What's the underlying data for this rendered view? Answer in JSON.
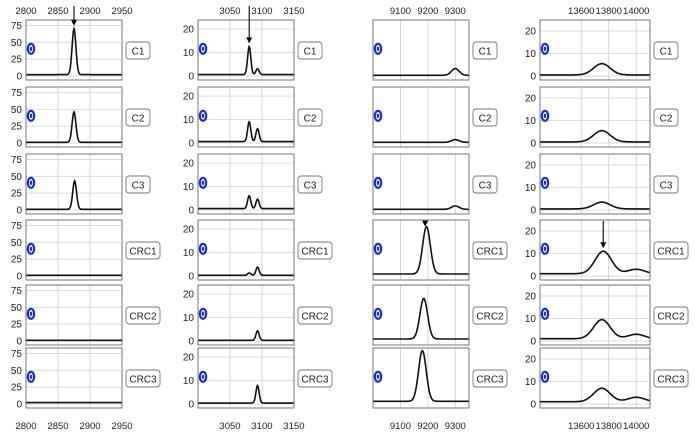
{
  "colors": {
    "line": "#111111",
    "grid": "#cfcfcf",
    "frame": "#666666",
    "label_box": "#777777",
    "marker": "#1c2bd6",
    "text": "#222222"
  },
  "marker_icon": "blue-ring-icon",
  "arrow_icon": "down-arrow-icon",
  "chart_data": [
    {
      "type": "line",
      "column": 1,
      "rows": [
        "C1",
        "C2",
        "C3",
        "CRC1",
        "CRC2",
        "CRC3"
      ],
      "xlim": [
        2800,
        2950
      ],
      "ylim": [
        0,
        80
      ],
      "top_ticks": [
        2800,
        2850,
        2900,
        2950
      ],
      "bottom_ticks": [
        2800,
        2850,
        2900,
        2950
      ],
      "y_ticks": [
        0,
        25,
        50,
        75
      ],
      "gauss_sigma": 3,
      "series": [
        {
          "name": "C1",
          "baseline": 2,
          "peaks": [
            [
              2875,
              68
            ]
          ],
          "arrow_x": 2875
        },
        {
          "name": "C2",
          "baseline": 1,
          "peaks": [
            [
              2875,
              45
            ]
          ]
        },
        {
          "name": "C3",
          "baseline": 1,
          "peaks": [
            [
              2876,
              42
            ]
          ]
        },
        {
          "name": "CRC1",
          "baseline": 1,
          "peaks": []
        },
        {
          "name": "CRC2",
          "baseline": 1,
          "peaks": []
        },
        {
          "name": "CRC3",
          "baseline": 2,
          "peaks": []
        }
      ]
    },
    {
      "type": "line",
      "column": 2,
      "rows": [
        "C1",
        "C2",
        "C3",
        "CRC1",
        "CRC2",
        "CRC3"
      ],
      "xlim": [
        3000,
        3150
      ],
      "ylim": [
        0,
        23
      ],
      "top_ticks": [
        3050,
        3100,
        3150
      ],
      "bottom_ticks": [
        3050,
        3100,
        3150
      ],
      "y_ticks": [
        0,
        10,
        20
      ],
      "gauss_sigma": 2.5,
      "series": [
        {
          "name": "C1",
          "baseline": 0.6,
          "peaks": [
            [
              3080,
              12
            ],
            [
              3093,
              2.5
            ]
          ],
          "arrow_x": 3080
        },
        {
          "name": "C2",
          "baseline": 0.6,
          "peaks": [
            [
              3080,
              8.5
            ],
            [
              3093,
              5.5
            ]
          ]
        },
        {
          "name": "C3",
          "baseline": 0.6,
          "peaks": [
            [
              3080,
              5.5
            ],
            [
              3093,
              4
            ]
          ]
        },
        {
          "name": "CRC1",
          "baseline": 0.3,
          "peaks": [
            [
              3080,
              1
            ],
            [
              3093,
              3.5
            ]
          ]
        },
        {
          "name": "CRC2",
          "baseline": 0.3,
          "peaks": [
            [
              3093,
              4
            ]
          ]
        },
        {
          "name": "CRC3",
          "baseline": 0.4,
          "peaks": [
            [
              3093,
              7.5
            ]
          ]
        }
      ]
    },
    {
      "type": "line",
      "column": 3,
      "rows": [
        "C1",
        "C2",
        "C3",
        "CRC1",
        "CRC2",
        "CRC3"
      ],
      "xlim": [
        9000,
        9350
      ],
      "ylim": [
        0,
        80
      ],
      "top_ticks": [
        9100,
        9200,
        9300
      ],
      "bottom_ticks": [
        9100,
        9200,
        9300
      ],
      "y_ticks": [],
      "gauss_sigma": 14,
      "series": [
        {
          "name": "C1",
          "baseline": 1,
          "peaks": [
            [
              9300,
              10
            ]
          ]
        },
        {
          "name": "C2",
          "baseline": 1,
          "peaks": [
            [
              9300,
              4
            ]
          ]
        },
        {
          "name": "C3",
          "baseline": 1,
          "peaks": [
            [
              9300,
              5
            ]
          ]
        },
        {
          "name": "CRC1",
          "baseline": 3,
          "peaks": [
            [
              9195,
              70
            ]
          ],
          "arrow_x": 9190
        },
        {
          "name": "CRC2",
          "baseline": 3,
          "peaks": [
            [
              9185,
              60
            ]
          ]
        },
        {
          "name": "CRC3",
          "baseline": 4,
          "peaks": [
            [
              9180,
              75
            ]
          ]
        }
      ]
    },
    {
      "type": "line",
      "column": 4,
      "rows": [
        "C1",
        "C2",
        "C3",
        "CRC1",
        "CRC2",
        "CRC3"
      ],
      "xlim": [
        13300,
        14100
      ],
      "ylim": [
        0,
        24
      ],
      "top_ticks": [
        13600,
        13800,
        14000
      ],
      "bottom_ticks": [
        13600,
        13800,
        14000
      ],
      "y_ticks": [
        0,
        10,
        20
      ],
      "gauss_sigma": 60,
      "series": [
        {
          "name": "C1",
          "baseline": 0.5,
          "peaks": [
            [
              13750,
              5
            ]
          ]
        },
        {
          "name": "C2",
          "baseline": 0.5,
          "peaks": [
            [
              13750,
              5
            ]
          ]
        },
        {
          "name": "C3",
          "baseline": 0.5,
          "peaks": [
            [
              13750,
              3
            ]
          ]
        },
        {
          "name": "CRC1",
          "baseline": 1,
          "peaks": [
            [
              13760,
              10
            ],
            [
              14000,
              2
            ]
          ],
          "arrow_x": 13760
        },
        {
          "name": "CRC2",
          "baseline": 1,
          "peaks": [
            [
              13750,
              8.5
            ],
            [
              14000,
              2
            ]
          ]
        },
        {
          "name": "CRC3",
          "baseline": 1,
          "peaks": [
            [
              13750,
              6
            ],
            [
              14000,
              2
            ]
          ]
        }
      ]
    }
  ]
}
